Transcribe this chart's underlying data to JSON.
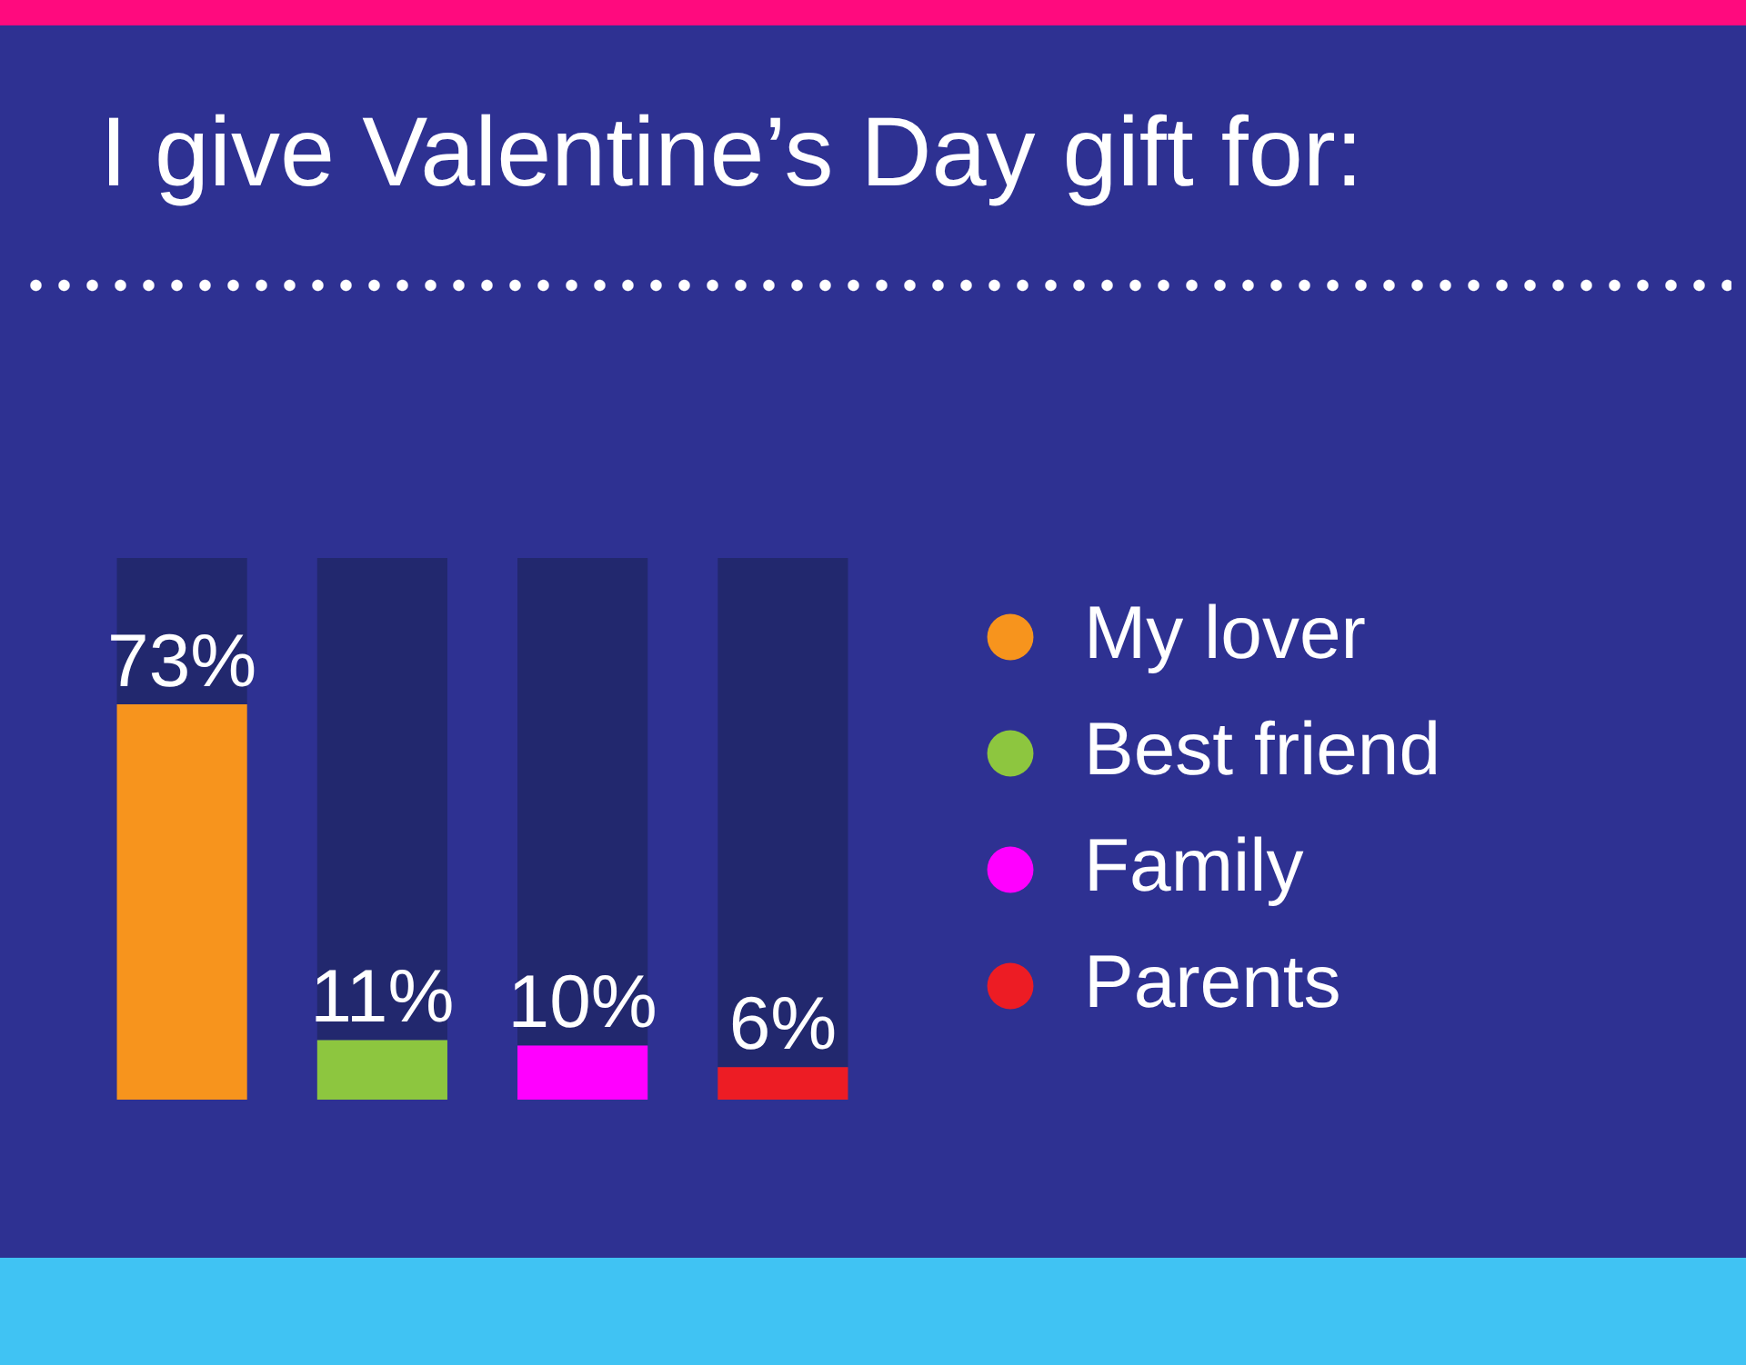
{
  "chart_data": {
    "type": "bar",
    "title": "I give Valentine’s Day gift for:",
    "categories": [
      null,
      null,
      null,
      null
    ],
    "stacked": true,
    "series": [
      {
        "name": "My lover",
        "color": "#f7941d",
        "values": [
          73,
          null,
          null,
          null
        ],
        "value_labels": [
          "73%",
          null,
          null,
          null
        ]
      },
      {
        "name": "Best friend",
        "color": "#8dc63f",
        "values": [
          null,
          11,
          null,
          null
        ],
        "value_labels": [
          null,
          "11%",
          null,
          null
        ]
      },
      {
        "name": "Family",
        "color": "#ff00ff",
        "values": [
          null,
          null,
          10,
          null
        ],
        "value_labels": [
          null,
          null,
          "10%",
          null
        ]
      },
      {
        "name": "Parents",
        "color": "#ed1c24",
        "values": [
          null,
          null,
          null,
          6
        ],
        "value_labels": [
          null,
          null,
          null,
          "6%"
        ]
      },
      {
        "color": "#22286e",
        "values": [
          27,
          89,
          90,
          94
        ]
      }
    ],
    "ylim": [
      0,
      100
    ],
    "legend": "right",
    "tick_labels": false
  }
}
